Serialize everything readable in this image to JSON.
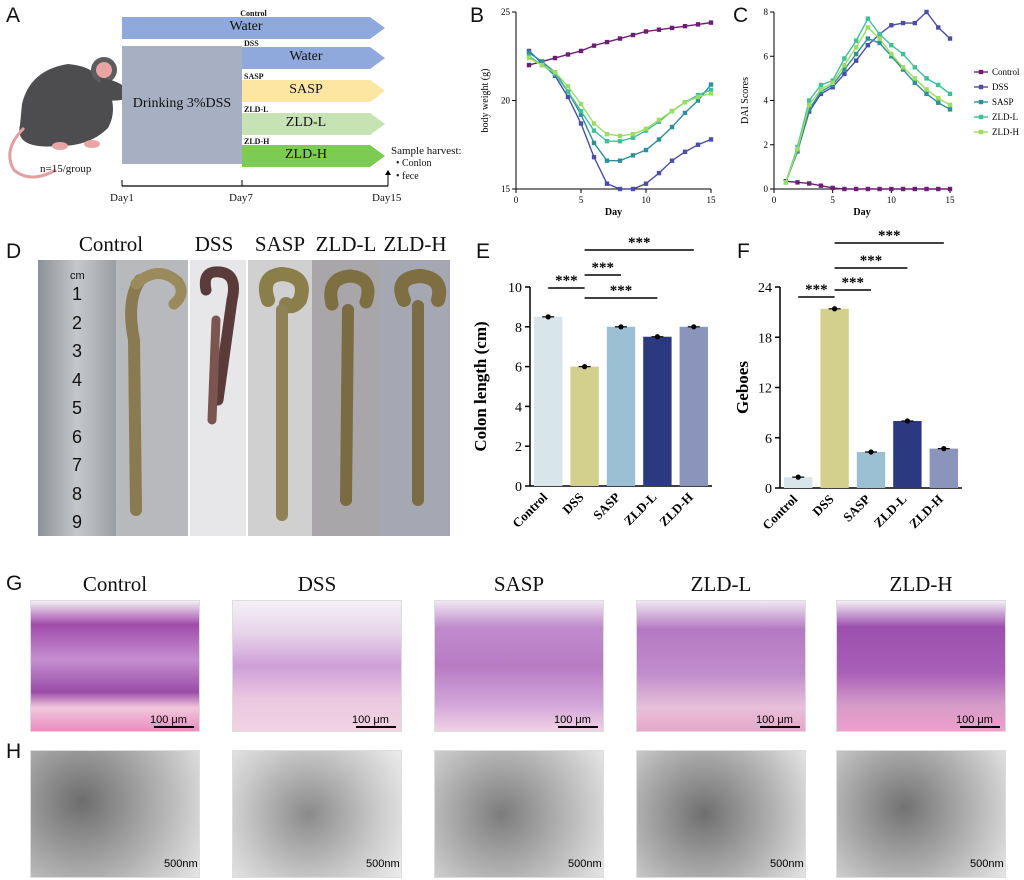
{
  "panels": {
    "A": "A",
    "B": "B",
    "C": "C",
    "D": "D",
    "E": "E",
    "F": "F",
    "G": "G",
    "H": "H"
  },
  "panelA": {
    "control_label": "Control",
    "control_arrow": "Water",
    "drinking": "Drinking 3%DSS",
    "groups": [
      {
        "small": "DSS",
        "text": "Water",
        "color": "#8fa9dc"
      },
      {
        "small": "SASP",
        "text": "SASP",
        "color": "#fde6a2"
      },
      {
        "small": "ZLD-L",
        "text": "ZLD-L",
        "color": "#c7e2b3"
      },
      {
        "small": "ZLD-H",
        "text": "ZLD-H",
        "color": "#7ccb52"
      }
    ],
    "n_label": "n=15/group",
    "sample_title": "Sample harvest:",
    "samples": [
      "Conlon",
      "fece"
    ],
    "days": [
      "Day1",
      "Day7",
      "Day15"
    ]
  },
  "panelD": {
    "groups": [
      "Control",
      "DSS",
      "SASP",
      "ZLD-L",
      "ZLD-H"
    ],
    "ruler_unit": "cm",
    "ruler_numbers": [
      "1",
      "2",
      "3",
      "4",
      "5",
      "6",
      "7",
      "8",
      "9"
    ]
  },
  "panelG": {
    "groups": [
      "Control",
      "DSS",
      "SASP",
      "ZLD-L",
      "ZLD-H"
    ],
    "scale": "100 μm"
  },
  "panelH": {
    "scale": "500nm"
  },
  "chart_data": [
    {
      "id": "B",
      "type": "line",
      "xlabel": "Day",
      "ylabel": "body weight (g)",
      "xlim": [
        0,
        15
      ],
      "ylim": [
        15,
        25
      ],
      "xticks": [
        0,
        5,
        10,
        15
      ],
      "yticks": [
        15,
        20,
        25
      ],
      "x": [
        1,
        2,
        3,
        4,
        5,
        6,
        7,
        8,
        9,
        10,
        11,
        12,
        13,
        14,
        15
      ],
      "series": [
        {
          "color": "#6b1f73",
          "values": [
            22.0,
            22.2,
            22.4,
            22.6,
            22.8,
            23.1,
            23.3,
            23.5,
            23.7,
            23.9,
            24.0,
            24.1,
            24.2,
            24.3,
            24.4
          ]
        },
        {
          "color": "#4c4ea5",
          "values": [
            22.8,
            22.1,
            21.4,
            20.2,
            18.7,
            16.8,
            15.3,
            15.0,
            15.0,
            15.3,
            15.9,
            16.6,
            17.1,
            17.5,
            17.8
          ]
        },
        {
          "color": "#2e8f96",
          "values": [
            22.7,
            22.2,
            21.6,
            20.5,
            19.2,
            17.6,
            16.6,
            16.6,
            16.9,
            17.2,
            17.8,
            18.5,
            19.3,
            20.0,
            20.9
          ]
        },
        {
          "color": "#3fbf9a",
          "values": [
            22.5,
            22.0,
            21.5,
            20.5,
            19.4,
            18.3,
            17.7,
            17.7,
            17.9,
            18.3,
            18.8,
            19.4,
            19.9,
            20.3,
            20.6
          ]
        },
        {
          "color": "#9bdc62",
          "values": [
            22.4,
            22.0,
            21.6,
            20.8,
            19.8,
            18.7,
            18.1,
            18.0,
            18.1,
            18.4,
            18.9,
            19.4,
            19.9,
            20.2,
            20.4
          ]
        }
      ]
    },
    {
      "id": "C",
      "type": "line",
      "xlabel": "Day",
      "ylabel": "DAI Scores",
      "xlim": [
        0,
        15
      ],
      "ylim": [
        0,
        8
      ],
      "xticks": [
        0,
        5,
        10,
        15
      ],
      "yticks": [
        0,
        2,
        4,
        6,
        8
      ],
      "x": [
        1,
        2,
        3,
        4,
        5,
        6,
        7,
        8,
        9,
        10,
        11,
        12,
        13,
        14,
        15
      ],
      "legend": [
        "Control",
        "DSS",
        "SASP",
        "ZLD-L",
        "ZLD-H"
      ],
      "series": [
        {
          "name": "Control",
          "color": "#6b1f73",
          "values": [
            0.35,
            0.3,
            0.25,
            0.15,
            0.05,
            0,
            0,
            0,
            0,
            0,
            0,
            0,
            0,
            0,
            0
          ]
        },
        {
          "name": "DSS",
          "color": "#4c4ea5",
          "values": [
            0.3,
            1.7,
            3.5,
            4.3,
            4.6,
            5.2,
            5.8,
            6.5,
            7.0,
            7.4,
            7.5,
            7.5,
            8.0,
            7.3,
            6.8
          ]
        },
        {
          "name": "SASP",
          "color": "#2e8f96",
          "values": [
            0.3,
            1.7,
            3.6,
            4.4,
            4.7,
            5.4,
            6.1,
            6.8,
            6.6,
            6.0,
            5.4,
            4.8,
            4.3,
            3.9,
            3.6
          ]
        },
        {
          "name": "ZLD-L",
          "color": "#3fbf9a",
          "values": [
            0.3,
            1.9,
            4.0,
            4.7,
            4.9,
            5.9,
            6.7,
            7.7,
            7.0,
            6.5,
            6.1,
            5.5,
            5.0,
            4.7,
            4.3
          ]
        },
        {
          "name": "ZLD-H",
          "color": "#9bdc62",
          "values": [
            0.3,
            1.8,
            3.8,
            4.5,
            4.8,
            5.6,
            6.4,
            7.3,
            6.8,
            6.1,
            5.5,
            5.0,
            4.5,
            4.1,
            3.8
          ]
        }
      ]
    },
    {
      "id": "E",
      "type": "bar",
      "ylabel": "Colon length (cm)",
      "ylim": [
        0,
        10
      ],
      "yticks": [
        0,
        2,
        4,
        6,
        8,
        10
      ],
      "categories": [
        "Control",
        "DSS",
        "SASP",
        "ZLD-L",
        "ZLD-H"
      ],
      "values": [
        8.5,
        6.0,
        8.0,
        7.5,
        8.0
      ],
      "colors": [
        "#d8e5ea",
        "#d2d08c",
        "#9bbfd3",
        "#2b3a80",
        "#8b95bc"
      ],
      "significance": [
        "***",
        "***",
        "***",
        "***"
      ]
    },
    {
      "id": "F",
      "type": "bar",
      "ylabel": "Geboes",
      "ylim": [
        0,
        24
      ],
      "yticks": [
        0,
        6,
        12,
        18,
        24
      ],
      "categories": [
        "Control",
        "DSS",
        "SASP",
        "ZLD-L",
        "ZLD-H"
      ],
      "values": [
        1.3,
        21.4,
        4.3,
        8.0,
        4.7
      ],
      "colors": [
        "#d8e5ea",
        "#d2d08c",
        "#9bbfd3",
        "#2b3a80",
        "#8b95bc"
      ],
      "significance": [
        "***",
        "***",
        "***",
        "***"
      ]
    }
  ]
}
